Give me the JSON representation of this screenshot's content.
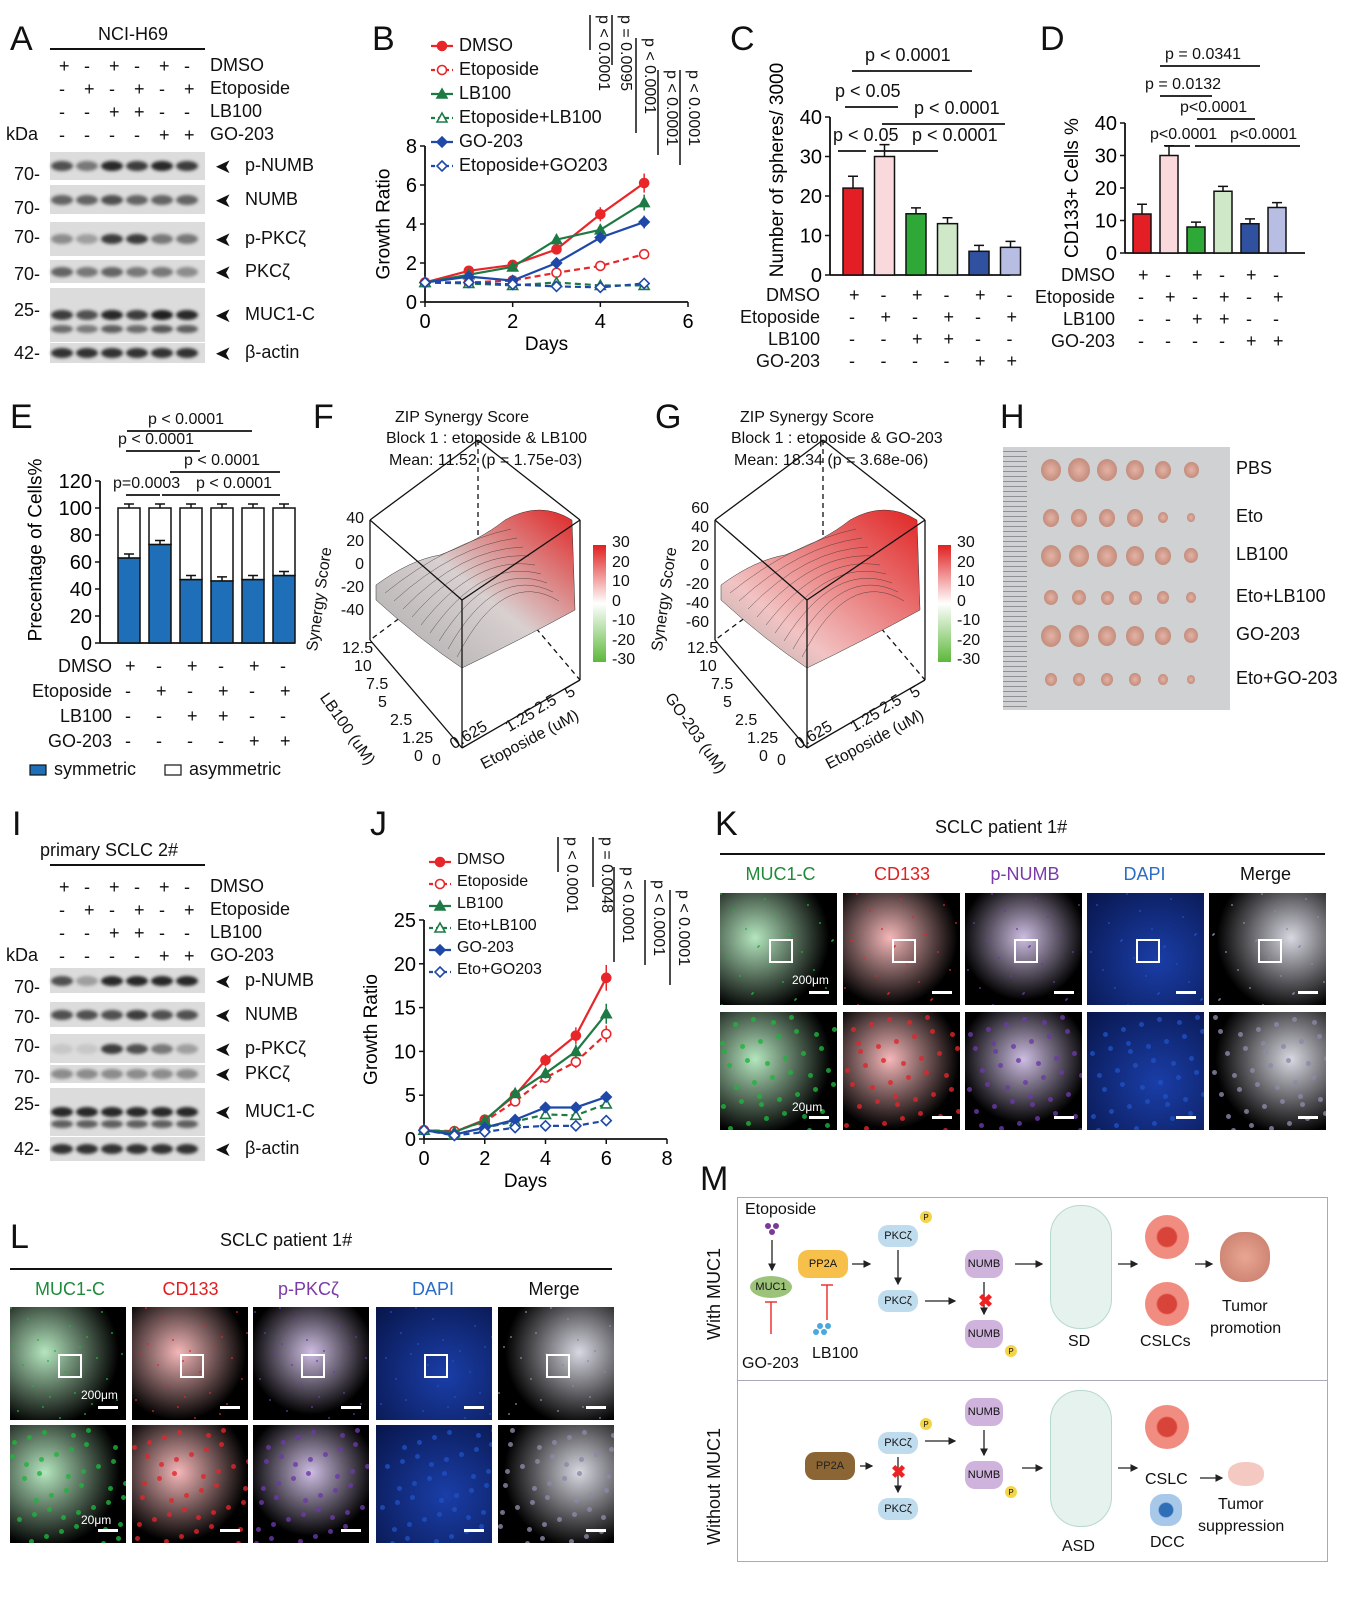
{
  "panels": {
    "A": "A",
    "B": "B",
    "C": "C",
    "D": "D",
    "E": "E",
    "F": "F",
    "G": "G",
    "H": "H",
    "I": "I",
    "J": "J",
    "K": "K",
    "L": "L",
    "M": "M"
  },
  "blot_a": {
    "title": "NCI-H69",
    "kda": "kDa",
    "treatments": [
      {
        "label": "DMSO",
        "signs": [
          "+",
          "-",
          "+",
          "-",
          "+",
          "-"
        ]
      },
      {
        "label": "Etoposide",
        "signs": [
          "-",
          "+",
          "-",
          "+",
          "-",
          "+"
        ]
      },
      {
        "label": "LB100",
        "signs": [
          "-",
          "-",
          "+",
          "+",
          "-",
          "-"
        ]
      },
      {
        "label": "GO-203",
        "signs": [
          "-",
          "-",
          "-",
          "-",
          "+",
          "+"
        ]
      }
    ],
    "bands": [
      {
        "label": "p-NUMB",
        "marker": "70-"
      },
      {
        "label": "NUMB",
        "marker": "70-"
      },
      {
        "label": "p-PKCζ",
        "marker": "70-"
      },
      {
        "label": "PKCζ",
        "marker": "70-"
      },
      {
        "label": "MUC1-C",
        "marker": "25-"
      },
      {
        "label": "β-actin",
        "marker": "42-"
      }
    ]
  },
  "blot_i": {
    "title": "primary SCLC 2#",
    "kda": "kDa",
    "treatments": [
      {
        "label": "DMSO",
        "signs": [
          "+",
          "-",
          "+",
          "-",
          "+",
          "-"
        ]
      },
      {
        "label": "Etoposide",
        "signs": [
          "-",
          "+",
          "-",
          "+",
          "-",
          "+"
        ]
      },
      {
        "label": "LB100",
        "signs": [
          "-",
          "-",
          "+",
          "+",
          "-",
          "-"
        ]
      },
      {
        "label": "GO-203",
        "signs": [
          "-",
          "-",
          "-",
          "-",
          "+",
          "+"
        ]
      }
    ],
    "bands": [
      {
        "label": "p-NUMB",
        "marker": "70-"
      },
      {
        "label": "NUMB",
        "marker": "70-"
      },
      {
        "label": "p-PKCζ",
        "marker": "70-"
      },
      {
        "label": "PKCζ",
        "marker": "70-"
      },
      {
        "label": "MUC1-C",
        "marker": "25-"
      },
      {
        "label": "β-actin",
        "marker": "42-"
      }
    ]
  },
  "chart_data": [
    {
      "id": "B",
      "type": "line",
      "xlabel": "Days",
      "ylabel": "Growth Ratio",
      "xlim": [
        0,
        6
      ],
      "ylim": [
        0,
        8
      ],
      "xticks": [
        0,
        2,
        4,
        6
      ],
      "yticks": [
        0,
        2,
        4,
        6,
        8
      ],
      "x": [
        0,
        1,
        2,
        3,
        4,
        5
      ],
      "series": [
        {
          "name": "DMSO",
          "color": "#e8262a",
          "dashed": false,
          "marker": "circle",
          "values": [
            1,
            1.6,
            1.9,
            2.7,
            4.5,
            6.1
          ]
        },
        {
          "name": "Etoposide",
          "color": "#e8262a",
          "dashed": true,
          "marker": "circle-open",
          "values": [
            1,
            1.0,
            1.1,
            1.5,
            1.85,
            2.45
          ]
        },
        {
          "name": "LB100",
          "color": "#1e7a45",
          "dashed": false,
          "marker": "triangle",
          "values": [
            1,
            1.4,
            1.8,
            3.2,
            3.7,
            5.1
          ]
        },
        {
          "name": "Etoposide+LB100",
          "color": "#1e7a45",
          "dashed": true,
          "marker": "triangle-open",
          "values": [
            1,
            0.95,
            0.85,
            1.0,
            0.85,
            0.85
          ]
        },
        {
          "name": "GO-203",
          "color": "#1f48a8",
          "dashed": false,
          "marker": "diamond",
          "values": [
            1,
            1.3,
            1.1,
            2.0,
            3.3,
            4.1
          ]
        },
        {
          "name": "Etoposide+GO203",
          "color": "#1f48a8",
          "dashed": true,
          "marker": "diamond-open",
          "values": [
            1,
            1.0,
            0.9,
            0.8,
            0.75,
            0.95
          ]
        }
      ],
      "annotations": [
        "p < 0.0001",
        "p = 0.0095",
        "p < 0.0001",
        "p < 0.0001",
        "p < 0.0001"
      ]
    },
    {
      "id": "C",
      "type": "bar",
      "ylabel": "Number of spheres/ 3000",
      "ylim": [
        0,
        40
      ],
      "yticks": [
        0,
        10,
        20,
        30,
        40
      ],
      "values": [
        22,
        30,
        15.5,
        13,
        6,
        7
      ],
      "colors": [
        "#e31e24",
        "#f9d9dc",
        "#2ea836",
        "#cfe8c8",
        "#3050a0",
        "#b7bde3"
      ],
      "annotations": [
        "p < 0.0001",
        "p < 0.05",
        "p < 0.0001",
        "p < 0.05",
        "p < 0.0001"
      ],
      "conditions": [
        {
          "label": "DMSO",
          "signs": [
            "+",
            "-",
            "+",
            "-",
            "+",
            "-"
          ]
        },
        {
          "label": "Etoposide",
          "signs": [
            "-",
            "+",
            "-",
            "+",
            "-",
            "+"
          ]
        },
        {
          "label": "LB100",
          "signs": [
            "-",
            "-",
            "+",
            "+",
            "-",
            "-"
          ]
        },
        {
          "label": "GO-203",
          "signs": [
            "-",
            "-",
            "-",
            "-",
            "+",
            "+"
          ]
        }
      ]
    },
    {
      "id": "D",
      "type": "bar",
      "ylabel": "CD133+ Cells %",
      "ylim": [
        0,
        40
      ],
      "yticks": [
        0,
        10,
        20,
        30,
        40
      ],
      "values": [
        12,
        30,
        8,
        19,
        9,
        14
      ],
      "colors": [
        "#e31e24",
        "#f9d9dc",
        "#2ea836",
        "#cfe8c8",
        "#3050a0",
        "#b7bde3"
      ],
      "annotations": [
        "p = 0.0341",
        "p = 0.0132",
        "p<0.0001",
        "p<0.0001",
        "p<0.0001"
      ],
      "conditions": [
        {
          "label": "DMSO",
          "signs": [
            "+",
            "-",
            "+",
            "-",
            "+",
            "-"
          ]
        },
        {
          "label": "Etoposide",
          "signs": [
            "-",
            "+",
            "-",
            "+",
            "-",
            "+"
          ]
        },
        {
          "label": "LB100",
          "signs": [
            "-",
            "-",
            "+",
            "+",
            "-",
            "-"
          ]
        },
        {
          "label": "GO-203",
          "signs": [
            "-",
            "-",
            "-",
            "-",
            "+",
            "+"
          ]
        }
      ]
    },
    {
      "id": "E",
      "type": "stacked-bar",
      "ylabel": "Precentage of Cells%",
      "ylim": [
        0,
        120
      ],
      "yticks": [
        0,
        20,
        40,
        60,
        80,
        100,
        120
      ],
      "series": [
        {
          "name": "symmetric",
          "color": "#1f6fb8",
          "values": [
            63,
            73,
            47,
            46,
            47,
            50
          ]
        },
        {
          "name": "asymmetric",
          "color": "#ffffff",
          "values": [
            37,
            27,
            53,
            54,
            53,
            50
          ]
        }
      ],
      "annotations": [
        "p < 0.0001",
        "p < 0.0001",
        "p < 0.0001",
        "p=0.0003",
        "p < 0.0001"
      ],
      "conditions": [
        {
          "label": "DMSO",
          "signs": [
            "+",
            "-",
            "+",
            "-",
            "+",
            "-"
          ]
        },
        {
          "label": "Etoposide",
          "signs": [
            "-",
            "+",
            "-",
            "+",
            "-",
            "+"
          ]
        },
        {
          "label": "LB100",
          "signs": [
            "-",
            "-",
            "+",
            "+",
            "-",
            "-"
          ]
        },
        {
          "label": "GO-203",
          "signs": [
            "-",
            "-",
            "-",
            "-",
            "+",
            "+"
          ]
        }
      ],
      "legend": "bottom"
    },
    {
      "id": "J",
      "type": "line",
      "xlabel": "Days",
      "ylabel": "Growth Ratio",
      "xlim": [
        0,
        8
      ],
      "ylim": [
        0,
        25
      ],
      "xticks": [
        0,
        2,
        4,
        6,
        8
      ],
      "yticks": [
        0,
        5,
        10,
        15,
        20,
        25
      ],
      "x": [
        0,
        1,
        2,
        3,
        4,
        5,
        6
      ],
      "series": [
        {
          "name": "DMSO",
          "color": "#e8262a",
          "dashed": false,
          "marker": "circle",
          "values": [
            1,
            0.8,
            2.2,
            5,
            9,
            11.8,
            18.4
          ]
        },
        {
          "name": "Etoposide",
          "color": "#e8262a",
          "dashed": true,
          "marker": "circle-open",
          "values": [
            1,
            0.9,
            2.0,
            4.3,
            7,
            8.8,
            12
          ]
        },
        {
          "name": "LB100",
          "color": "#1e7a45",
          "dashed": false,
          "marker": "triangle",
          "values": [
            1,
            0.8,
            2.1,
            5.2,
            7.5,
            10,
            14.3
          ]
        },
        {
          "name": "Eto+LB100",
          "color": "#1e7a45",
          "dashed": true,
          "marker": "triangle-open",
          "values": [
            1,
            0.5,
            1.3,
            2,
            2.8,
            2.7,
            4
          ]
        },
        {
          "name": "GO-203",
          "color": "#1f48a8",
          "dashed": false,
          "marker": "diamond",
          "values": [
            1,
            0.5,
            1.3,
            2.2,
            3.6,
            3.6,
            4.8
          ]
        },
        {
          "name": "Eto+GO203",
          "color": "#1f48a8",
          "dashed": true,
          "marker": "diamond-open",
          "values": [
            1,
            0.4,
            0.8,
            1.3,
            1.5,
            1.5,
            2.1
          ]
        }
      ],
      "annotations": [
        "p < 0.0001",
        "p = 0.0048",
        "p < 0.0001",
        "p < 0.0001",
        "p < 0.0001"
      ]
    }
  ],
  "synergy": [
    {
      "title": "ZIP Synergy Score",
      "block": "Block 1 : etoposide & LB100",
      "mean": "Mean: 11.52 (p = 1.75e-03)",
      "zlabel": "Synergy Score",
      "zticks": [
        "40",
        "20",
        "0",
        "-20",
        "-40"
      ],
      "ylabel": "LB100 (uM)",
      "yticks": [
        "12.5",
        "10",
        "7.5",
        "5",
        "2.5",
        "1.25",
        "0"
      ],
      "xlabel": "Etoposide (uM)",
      "xticks": [
        "0",
        "0.625",
        "1.25",
        "2.5",
        "5"
      ],
      "cbar": [
        "30",
        "20",
        "10",
        "0",
        "-10",
        "-20",
        "-30"
      ]
    },
    {
      "title": "ZIP Synergy Score",
      "block": "Block 1 : etoposide & GO-203",
      "mean": "Mean: 18.34 (p = 3.68e-06)",
      "zlabel": "Synergy Score",
      "zticks": [
        "60",
        "40",
        "20",
        "0",
        "-20",
        "-40",
        "-60"
      ],
      "ylabel": "GO-203 (uM)",
      "yticks": [
        "12.5",
        "10",
        "7.5",
        "5",
        "2.5",
        "1.25",
        "0"
      ],
      "xlabel": "Etoposide (uM)",
      "xticks": [
        "0",
        "0.625",
        "1.25",
        "2.5",
        "5"
      ],
      "cbar": [
        "30",
        "20",
        "10",
        "0",
        "-10",
        "-20",
        "-30"
      ]
    }
  ],
  "tumors": {
    "groups": [
      "PBS",
      "Eto",
      "LB100",
      "Eto+LB100",
      "GO-203",
      "Eto+GO-203"
    ]
  },
  "panel_k": {
    "title": "SCLC patient 1#",
    "channels": [
      {
        "label": "MUC1-C",
        "color": "#1e8a3a"
      },
      {
        "label": "CD133",
        "color": "#e02020"
      },
      {
        "label": "p-NUMB",
        "color": "#7a3aa8"
      },
      {
        "label": "DAPI",
        "color": "#2a6cc8"
      },
      {
        "label": "Merge",
        "color": "#111111"
      }
    ],
    "scale_top": "200μm",
    "scale_bottom": "20μm"
  },
  "panel_l": {
    "title": "SCLC patient 1#",
    "channels": [
      {
        "label": "MUC1-C",
        "color": "#1e8a3a"
      },
      {
        "label": "CD133",
        "color": "#e02020"
      },
      {
        "label": "p-PKCζ",
        "color": "#7a3aa8"
      },
      {
        "label": "DAPI",
        "color": "#2a6cc8"
      },
      {
        "label": "Merge",
        "color": "#111111"
      }
    ],
    "scale_top": "200μm",
    "scale_bottom": "20μm"
  },
  "model": {
    "with_label": "With MUC1",
    "without_label": "Without MUC1",
    "etoposide": "Etoposide",
    "muc1": "MUC1",
    "pp2a": "PP2A",
    "go203": "GO-203",
    "lb100": "LB100",
    "pkcz": "PKCζ",
    "numb": "NUMB",
    "p": "P",
    "sd": "SD",
    "cslcs": "CSLCs",
    "tumor_promotion_1": "Tumor",
    "tumor_promotion_2": "promotion",
    "asd": "ASD",
    "cslc": "CSLC",
    "dcc": "DCC",
    "tumor_suppression_1": "Tumor",
    "tumor_suppression_2": "suppression"
  }
}
